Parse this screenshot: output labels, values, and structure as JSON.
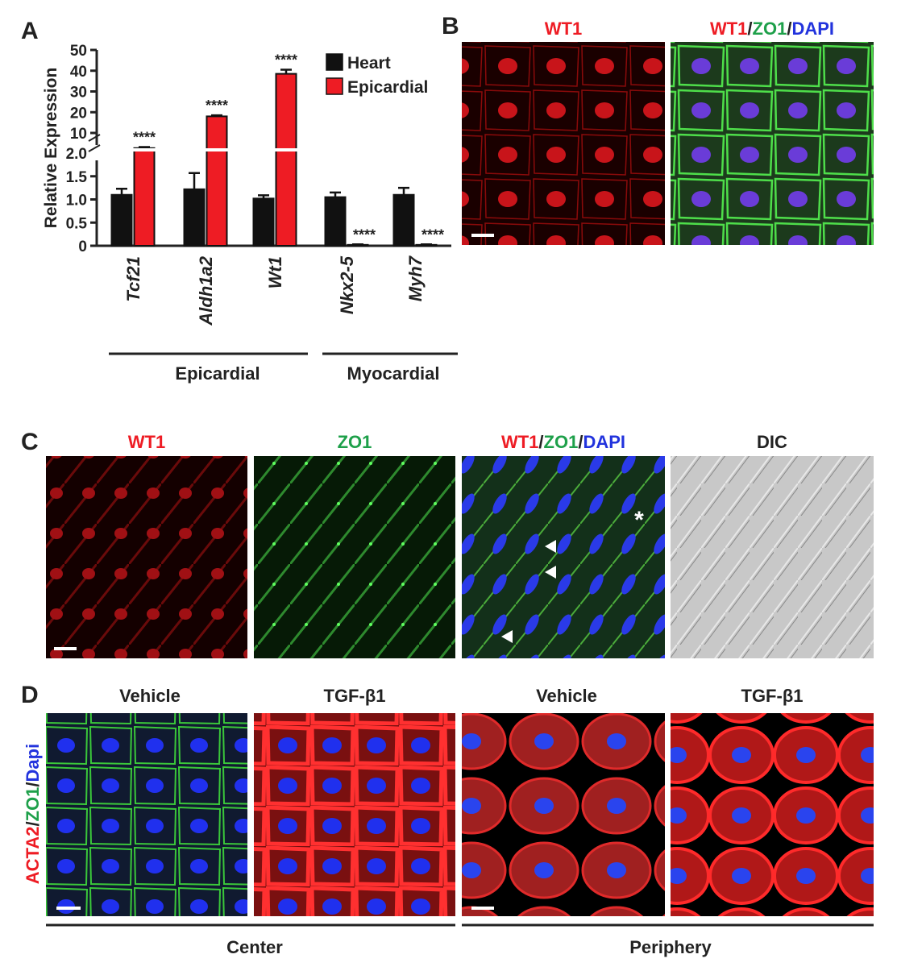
{
  "chart_data": {
    "type": "bar",
    "panel_label": "A",
    "ylabel": "Relative Expression",
    "categories": [
      "Tcf21",
      "Aldh1a2",
      "Wt1",
      "Nkx2-5",
      "Myh7"
    ],
    "groups": [
      {
        "name": "Epicardial",
        "categories": [
          0,
          2
        ]
      },
      {
        "name": "Myocardial",
        "categories": [
          3,
          4
        ]
      }
    ],
    "series": [
      {
        "name": "Heart",
        "color": "#111111",
        "values": [
          1.1,
          1.22,
          1.02,
          1.05,
          1.1
        ],
        "errors": [
          0.13,
          0.35,
          0.07,
          0.1,
          0.15
        ]
      },
      {
        "name": "Epicardial",
        "color": "#ee1c24",
        "values": [
          4,
          18,
          38.5,
          0.02,
          0.02
        ],
        "errors": [
          0.4,
          0.5,
          2,
          0.01,
          0.01
        ],
        "significance": [
          "****",
          "****",
          "****",
          "****",
          "****"
        ]
      }
    ],
    "ylim": [
      0,
      50
    ],
    "ybreak": [
      2,
      10
    ],
    "yticks": [
      0,
      {
        "value": 0.5,
        "label": "0.5"
      },
      {
        "value": 1,
        "label": "1.0"
      },
      {
        "value": 1.5,
        "label": "1.5"
      },
      {
        "value": 2,
        "label": "2.0"
      },
      10,
      20,
      30,
      40,
      50
    ],
    "legend": "top-right"
  },
  "panels": {
    "B": {
      "label": "B",
      "titles": [
        [
          "WT1"
        ],
        [
          "WT1",
          "/",
          "ZO1",
          "/",
          "DAPI"
        ]
      ]
    },
    "C": {
      "label": "C",
      "titles": [
        [
          "WT1"
        ],
        [
          "ZO1"
        ],
        [
          "WT1",
          "/",
          "ZO1",
          "/",
          "DAPI"
        ],
        [
          "DIC"
        ]
      ],
      "marker": "*"
    },
    "D": {
      "label": "D",
      "titles": [
        [
          "Vehicle"
        ],
        [
          "TGF-β1"
        ],
        [
          "Vehicle"
        ],
        [
          "TGF-β1"
        ]
      ],
      "row_label": [
        "ACTA2",
        "/",
        "ZO1",
        "/",
        "Dapi"
      ],
      "groups": [
        "Center",
        "Periphery"
      ]
    }
  }
}
